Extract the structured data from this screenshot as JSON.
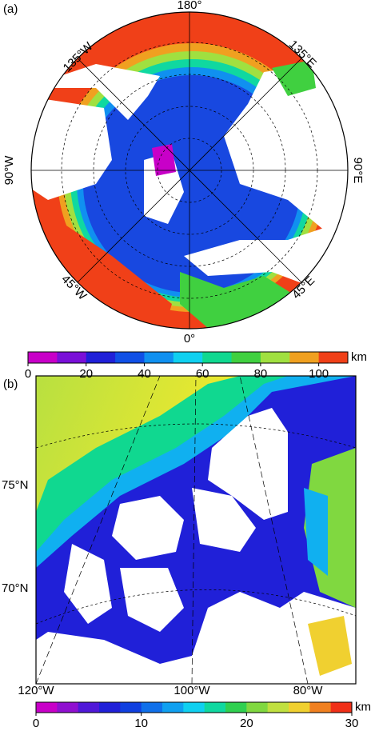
{
  "panel_a": {
    "label": "(a)",
    "lon_labels": [
      "180°",
      "135°E",
      "90°E",
      "45°E",
      "0°",
      "45°W",
      "90°W",
      "135°W"
    ],
    "colorbar": {
      "lim": [
        0,
        110
      ],
      "ticks": [
        0,
        20,
        40,
        60,
        80,
        100
      ],
      "unit": "km",
      "colors": [
        "#c800c8",
        "#7a10d8",
        "#2020d8",
        "#1050e6",
        "#1090f0",
        "#10d0f0",
        "#10d890",
        "#40d040",
        "#a0e040",
        "#f0a020",
        "#f04018"
      ]
    }
  },
  "panel_b": {
    "label": "(b)",
    "lat_labels": [
      "75°N",
      "70°N"
    ],
    "lon_labels": [
      "120°W",
      "100°W",
      "80°W"
    ],
    "colorbar": {
      "lim": [
        0,
        30
      ],
      "ticks": [
        0,
        10,
        20,
        30
      ],
      "unit": "km",
      "colors": [
        "#c800c8",
        "#9010d0",
        "#5018d8",
        "#2020d8",
        "#1040e0",
        "#1070ea",
        "#10a0f0",
        "#10d0f0",
        "#10d8a0",
        "#30d050",
        "#80d840",
        "#c0e040",
        "#f0d030",
        "#f08020",
        "#f03018"
      ]
    }
  }
}
